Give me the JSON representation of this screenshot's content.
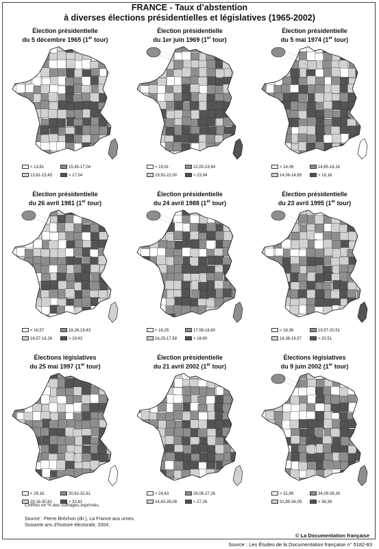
{
  "title": {
    "line1": "FRANCE -  Taux d’abstention",
    "line2": "à diverses élections présidentielles et législatives (1965-2002)"
  },
  "colors": {
    "class1": "#ffffff",
    "class2": "#d2d2d2",
    "class3": "#8e8e8e",
    "class4": "#535353",
    "border": "#333333"
  },
  "maps": [
    {
      "title_line1": "Élection présidentielle",
      "title_line2": "du 5 décembre 1965 (1",
      "title_sup": "er",
      "title_end": " tour)",
      "legend": [
        "< 13,81",
        "15,45-17,04",
        "13,81-15,45",
        "> 17,04"
      ],
      "inset": false
    },
    {
      "title_line1": "Élection présidentielle",
      "title_line2": "du 1er juin 1969 (1",
      "title_sup": "er",
      "title_end": " tour)",
      "legend": [
        "< 19,91",
        "22,00-23,94",
        "19,91-22,00",
        "> 23,94"
      ],
      "inset": true
    },
    {
      "title_line1": "Élection présidentielle",
      "title_line2": "du 5 mai 1974 (1",
      "title_sup": "er",
      "title_end": " tour)",
      "legend": [
        "< 14,06",
        "14,85-16,16",
        "14,06-14,85",
        "> 16,16"
      ],
      "inset": true
    },
    {
      "title_line1": "Élection présidentielle",
      "title_line2": "du 26 avril 1981 (1",
      "title_sup": "er",
      "title_end": " tour)",
      "legend": [
        "< 16,57",
        "18,26-19,43",
        "16,57-18,26",
        "> 19,43"
      ],
      "inset": true
    },
    {
      "title_line1": "Élection présidentielle",
      "title_line2": "du 24 avril 1988 (1",
      "title_sup": "er",
      "title_end": " tour)",
      "legend": [
        "< 16,25",
        "17,58-18,60",
        "16,25-17,58",
        "> 18,60"
      ],
      "inset": true
    },
    {
      "title_line1": "Élection présidentielle",
      "title_line2": "du 23 avril 1995 (1",
      "title_sup": "er",
      "title_end": " tour)",
      "legend": [
        "< 18,36",
        "19,57-20,51",
        "18,36-19,57",
        "> 20,51"
      ],
      "inset": true
    },
    {
      "title_line1": "Élections législatives",
      "title_line2": "du 25 mai 1997 (1",
      "title_sup": "er",
      "title_end": " tour)",
      "legend": [
        "< 29,16",
        "30,61-32,61",
        "29,16-30,61",
        "> 32,61"
      ],
      "inset": false
    },
    {
      "title_line1": "Élection présidentielle",
      "title_line2": "du 21 avril 2002 (1",
      "title_sup": "er",
      "title_end": " tour)",
      "legend": [
        "< 24,43",
        "26,08-27,26",
        "24,43-26,08",
        "> 27,26"
      ],
      "inset": false
    },
    {
      "title_line1": "Élections législatives",
      "title_line2": "du 9 juin 2002 (1",
      "title_sup": "er",
      "title_end": " tour)",
      "legend": [
        "< 31,89",
        "34,09-36,39",
        "31,89-34,09",
        "> 36,39"
      ],
      "inset": true
    }
  ],
  "footer": {
    "note": "Chiffres en % des suffrages exprimés.",
    "source_line1": "Source : Pierre Bréchon (dir.), La France aux urnes.",
    "source_line2": "Soixante ans d’histoire électorale, 2004.",
    "brand": "© La Documentation française",
    "bottom": "Source : Les Études de la Documentation française n° 5182-83"
  }
}
